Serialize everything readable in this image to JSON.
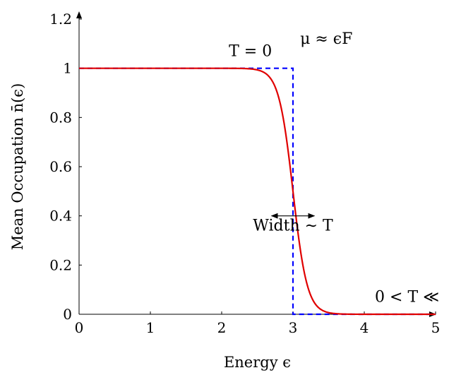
{
  "chart_data": {
    "type": "line",
    "title": "",
    "xlabel": "Energy ϵ",
    "ylabel": "Mean Occupation n̄(ϵ)",
    "xlim": [
      0,
      5
    ],
    "ylim": [
      0,
      1.2
    ],
    "x_ticks": [
      "0",
      "1",
      "2",
      "3",
      "4",
      "5"
    ],
    "y_ticks": [
      "0",
      "0.2",
      "0.4",
      "0.6",
      "0.8",
      "1",
      "1.2"
    ],
    "grid": false,
    "legend": "none",
    "series": [
      {
        "style": "dashed",
        "color": "#0000ff",
        "points": [
          [
            0,
            1
          ],
          [
            3,
            1
          ],
          [
            3,
            0
          ],
          [
            5,
            0
          ]
        ]
      },
      {
        "style": "solid",
        "color": "#e00000",
        "function": "fermi-dirac",
        "mu": 3,
        "T": 0.1,
        "x_range": [
          0,
          5
        ]
      }
    ],
    "annotations": [
      {
        "text": "T = 0",
        "x": 2.1,
        "y": 1.05
      },
      {
        "text": "μ ≈ ϵF",
        "x": 3.1,
        "y": 1.1
      },
      {
        "text": "Width ∼ T",
        "x": 3.0,
        "y": 0.34
      },
      {
        "text": "0 < T ≪",
        "x": 4.6,
        "y": 0.05
      }
    ],
    "width_arrow": {
      "x_from": 2.7,
      "x_to": 3.3,
      "y": 0.4
    }
  }
}
